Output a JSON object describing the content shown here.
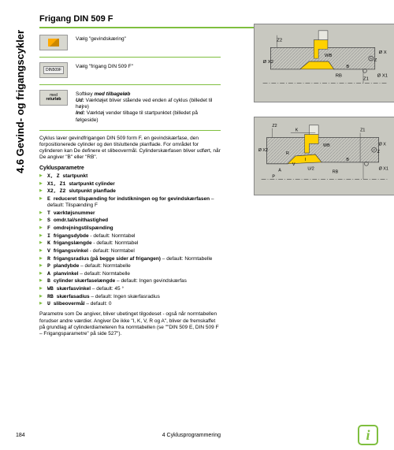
{
  "sidebar": {
    "title": "4.6 Gevind- og frigangscykler"
  },
  "header": {
    "title": "Frigang DIN 509 F"
  },
  "steps": [
    {
      "btn": "thread",
      "text": "Vælg \"gevindskæring\""
    },
    {
      "btn": "din509",
      "text": "Vælg \"frigang DIN 509 F\""
    },
    {
      "btn": "med",
      "btnLabel1": "med",
      "btnLabel2": "returløb",
      "textHtml": "Softkey <b>med tilbageløb</b><br><b>Ud:</b> Værktøjet bliver stående ved enden af cyklus (billedet til højre)<br><b>Ind:</b> Værktøj vender tilbage til startpunktet (billedet på følgeside)"
    }
  ],
  "intro": "Cyklus laver gevindfrigangen DIN 509 form F, en gevindskærfase, den forpositionerede cylinder og den tilsluttende planflade. For området for cylinderen kan De definere et slibeovermål. Cylinderskærfasen bliver udført, når De angiver \"B\" eller \"RB\".",
  "paramsHead": "Cyklusparametre",
  "params": [
    {
      "code": "X, Z",
      "label": "startpunkt"
    },
    {
      "code": "X1, Z1",
      "label": "startpunkt cylinder"
    },
    {
      "code": "X2, Z2",
      "label": "slutpunkt planflade"
    },
    {
      "code": "E",
      "label": "reduceret tilspænding for indstikningen og for gevindskærfasen – default: Tilspænding F"
    },
    {
      "code": "T",
      "label": "værktøjsnummer"
    },
    {
      "code": "S",
      "label": "omdr.tal/snithastighed"
    },
    {
      "code": "F",
      "label": "omdrejningstilspænding"
    },
    {
      "code": "I",
      "label": "frigangsdybde - default: Normtabel"
    },
    {
      "code": "K",
      "label": "frigangslængde - default: Normtabel"
    },
    {
      "code": "V",
      "label": "frigangsvinkel - default: Normtabel"
    },
    {
      "code": "R",
      "label": "frigangsradius (på begge sider af frigangen) – default: Normtabelle"
    },
    {
      "code": "P",
      "label": "plandybde – default: Normtabelle"
    },
    {
      "code": "A",
      "label": "planvinkel – default: Normtabelle"
    },
    {
      "code": "B",
      "label": "cylinder skærfaselængde – default: Ingen gevindskærfas"
    },
    {
      "code": "WB",
      "label": "skærfasvinkel – default: 45 °"
    },
    {
      "code": "RB",
      "label": "skærfasadius – default: Ingen skærfasradius"
    },
    {
      "code": "U",
      "label": "slibeovermål – default: 0"
    }
  ],
  "outro": "Parametre som De angiver, bliver ubetinget tilgodeset - også når normtabellen forudser andre værdier. Angiver De ikke \"I, K, V, R og A\", bliver de fremskaffet på grundlag af cylinderdiameteren fra normtabellen (se \"\"DIN 509 E, DIN 509 F – Frigangsparametre\" på side 527\").",
  "footer": {
    "pageNum": "184",
    "chapter": "4 Cyklusprogrammering"
  },
  "fig": {
    "bg": "#c8c8c0",
    "toolColors": {
      "shaft": "#e8e8e0",
      "cutter": "#ffd100",
      "hatch": "#a0a090"
    },
    "labels1": [
      "Ø X2",
      "Z2",
      "Ø X",
      "WB",
      "Z",
      "RB",
      "B",
      "Ø X1",
      "Z1"
    ],
    "labels2": [
      "Z2",
      "Ø X2",
      "K",
      "R",
      "V",
      "Ø X",
      "U/2",
      "I",
      "WB",
      "Z",
      "A",
      "RB",
      "P",
      "B",
      "Z1",
      "Ø X1"
    ]
  }
}
